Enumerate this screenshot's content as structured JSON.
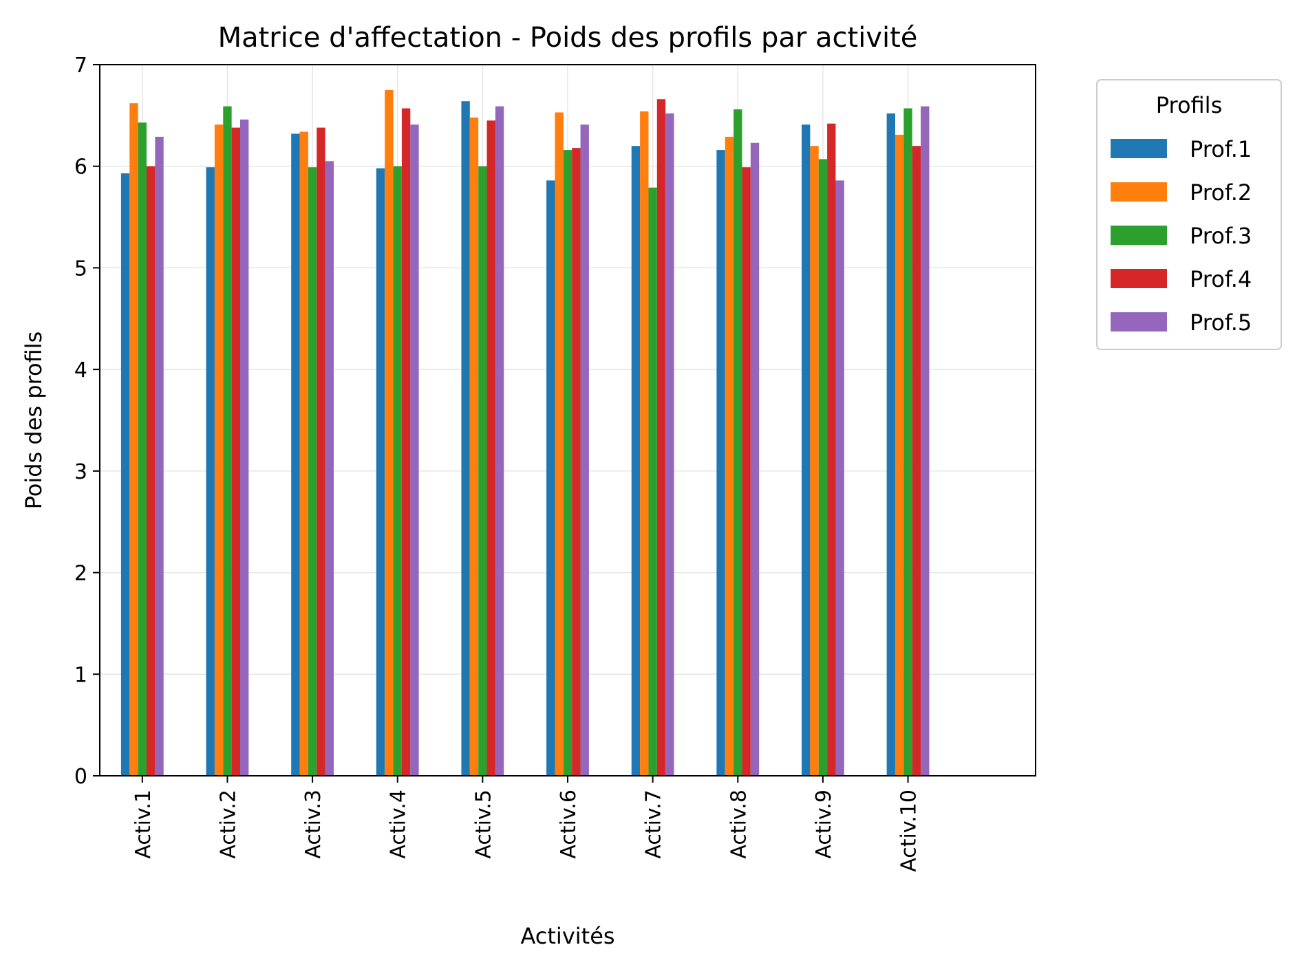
{
  "chart_data": {
    "type": "bar",
    "title": "Matrice d'affectation - Poids des profils par activité",
    "xlabel": "Activités",
    "ylabel": "Poids des profils",
    "ylim": [
      0,
      7
    ],
    "yticks": [
      0,
      1,
      2,
      3,
      4,
      5,
      6,
      7
    ],
    "grid": true,
    "legend_title": "Profils",
    "legend_position": "outside-top-right",
    "categories": [
      "Activ.1",
      "Activ.2",
      "Activ.3",
      "Activ.4",
      "Activ.5",
      "Activ.6",
      "Activ.7",
      "Activ.8",
      "Activ.9",
      "Activ.10"
    ],
    "series": [
      {
        "name": "Prof.1",
        "color": "#1f77b4",
        "values": [
          5.93,
          5.99,
          6.32,
          5.98,
          6.64,
          5.86,
          6.2,
          6.16,
          6.41,
          6.52
        ]
      },
      {
        "name": "Prof.2",
        "color": "#ff7f0e",
        "values": [
          6.62,
          6.41,
          6.34,
          6.75,
          6.48,
          6.53,
          6.54,
          6.29,
          6.2,
          6.31
        ]
      },
      {
        "name": "Prof.3",
        "color": "#2ca02c",
        "values": [
          6.43,
          6.59,
          5.99,
          6.0,
          6.0,
          6.16,
          5.79,
          6.56,
          6.07,
          6.57
        ]
      },
      {
        "name": "Prof.4",
        "color": "#d62728",
        "values": [
          6.0,
          6.38,
          6.38,
          6.57,
          6.45,
          6.18,
          6.66,
          5.99,
          6.42,
          6.2
        ]
      },
      {
        "name": "Prof.5",
        "color": "#9467bd",
        "values": [
          6.29,
          6.46,
          6.05,
          6.41,
          6.59,
          6.41,
          6.52,
          6.23,
          5.86,
          6.59
        ]
      }
    ]
  }
}
